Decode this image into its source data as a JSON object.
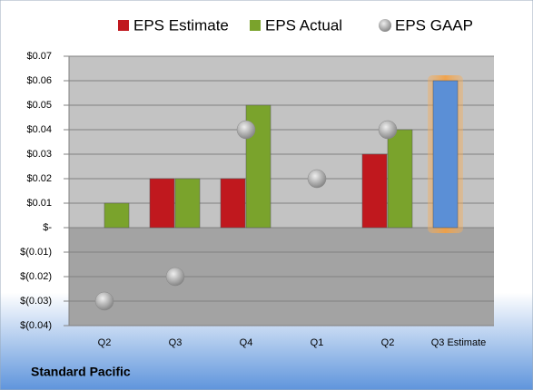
{
  "chart_data": {
    "type": "bar",
    "categories": [
      "Q2",
      "Q3",
      "Q4",
      "Q1",
      "Q2",
      "Q3 Estimate"
    ],
    "series": [
      {
        "name": "EPS Estimate",
        "color": "#c0181e",
        "colors": [
          "#c0181e",
          "#c0181e",
          "#c0181e",
          "#c0181e",
          "#c0181e",
          "#5b8fd6"
        ],
        "values": [
          null,
          0.02,
          0.02,
          null,
          0.03,
          0.06
        ]
      },
      {
        "name": "EPS Actual",
        "color": "#7aa32c",
        "values": [
          0.01,
          0.02,
          0.05,
          null,
          0.04,
          null
        ]
      },
      {
        "name": "EPS GAAP",
        "color": "#a6a6a6",
        "marker": "circle",
        "values": [
          -0.03,
          -0.02,
          0.04,
          0.02,
          0.04,
          null
        ]
      }
    ],
    "ylim": [
      -0.04,
      0.07
    ],
    "yticks": [
      {
        "value": -0.04,
        "label": "$(0.04)"
      },
      {
        "value": -0.03,
        "label": "$(0.03)"
      },
      {
        "value": -0.02,
        "label": "$(0.02)"
      },
      {
        "value": -0.01,
        "label": "$(0.01)"
      },
      {
        "value": 0,
        "label": "$-"
      },
      {
        "value": 0.01,
        "label": "$0.01"
      },
      {
        "value": 0.02,
        "label": "$0.02"
      },
      {
        "value": 0.03,
        "label": "$0.03"
      },
      {
        "value": 0.04,
        "label": "$0.04"
      },
      {
        "value": 0.05,
        "label": "$0.05"
      },
      {
        "value": 0.06,
        "label": "$0.06"
      },
      {
        "value": 0.07,
        "label": "$0.07"
      }
    ],
    "grid": true,
    "legend": "top",
    "footer": "Standard Pacific"
  }
}
